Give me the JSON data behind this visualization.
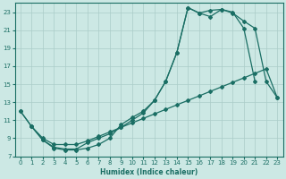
{
  "xlabel": "Humidex (Indice chaleur)",
  "background_color": "#cce8e4",
  "grid_color": "#aaccc8",
  "line_color": "#1a6e64",
  "xlim": [
    -0.5,
    23.5
  ],
  "ylim": [
    7,
    24
  ],
  "yticks": [
    7,
    9,
    11,
    13,
    15,
    17,
    19,
    21,
    23
  ],
  "xticks": [
    0,
    1,
    2,
    3,
    4,
    5,
    6,
    7,
    8,
    9,
    10,
    11,
    12,
    13,
    14,
    15,
    16,
    17,
    18,
    19,
    20,
    21,
    22,
    23
  ],
  "curve1_x": [
    0,
    1,
    2,
    3,
    4,
    5,
    6,
    7,
    8,
    9,
    10,
    11,
    12,
    13,
    14,
    15,
    16,
    17,
    18,
    19,
    20,
    21
  ],
  "curve1_y": [
    12.0,
    10.3,
    8.8,
    7.9,
    7.7,
    7.7,
    7.9,
    8.3,
    9.0,
    10.5,
    11.3,
    12.0,
    13.2,
    15.3,
    18.5,
    23.5,
    22.9,
    22.5,
    23.3,
    23.0,
    21.2,
    15.3
  ],
  "curve2_x": [
    0,
    1,
    2,
    3,
    4,
    5,
    6,
    7,
    8,
    9,
    10,
    11,
    12,
    13,
    14,
    15,
    16,
    17,
    18,
    19,
    20,
    21,
    22,
    23
  ],
  "curve2_y": [
    12.0,
    10.3,
    8.8,
    8.0,
    7.8,
    7.8,
    8.5,
    9.0,
    9.5,
    10.2,
    11.0,
    11.8,
    13.2,
    15.3,
    18.5,
    23.5,
    22.9,
    23.2,
    23.3,
    22.9,
    22.0,
    21.2,
    15.3,
    13.5
  ],
  "curve3_x": [
    1,
    2,
    3,
    4,
    5,
    6,
    7,
    8,
    9,
    10,
    11,
    12,
    13,
    14,
    15,
    16,
    17,
    18,
    19,
    20,
    21,
    22,
    23
  ],
  "curve3_y": [
    10.3,
    9.0,
    8.3,
    8.3,
    8.3,
    8.7,
    9.2,
    9.7,
    10.2,
    10.7,
    11.2,
    11.7,
    12.2,
    12.7,
    13.2,
    13.7,
    14.2,
    14.7,
    15.2,
    15.7,
    16.2,
    16.7,
    13.5
  ],
  "xlabel_color": "#1a6e64",
  "xlabel_fontsize": 5.5,
  "tick_labelsize": 5,
  "linewidth": 0.9,
  "markersize": 2.0
}
